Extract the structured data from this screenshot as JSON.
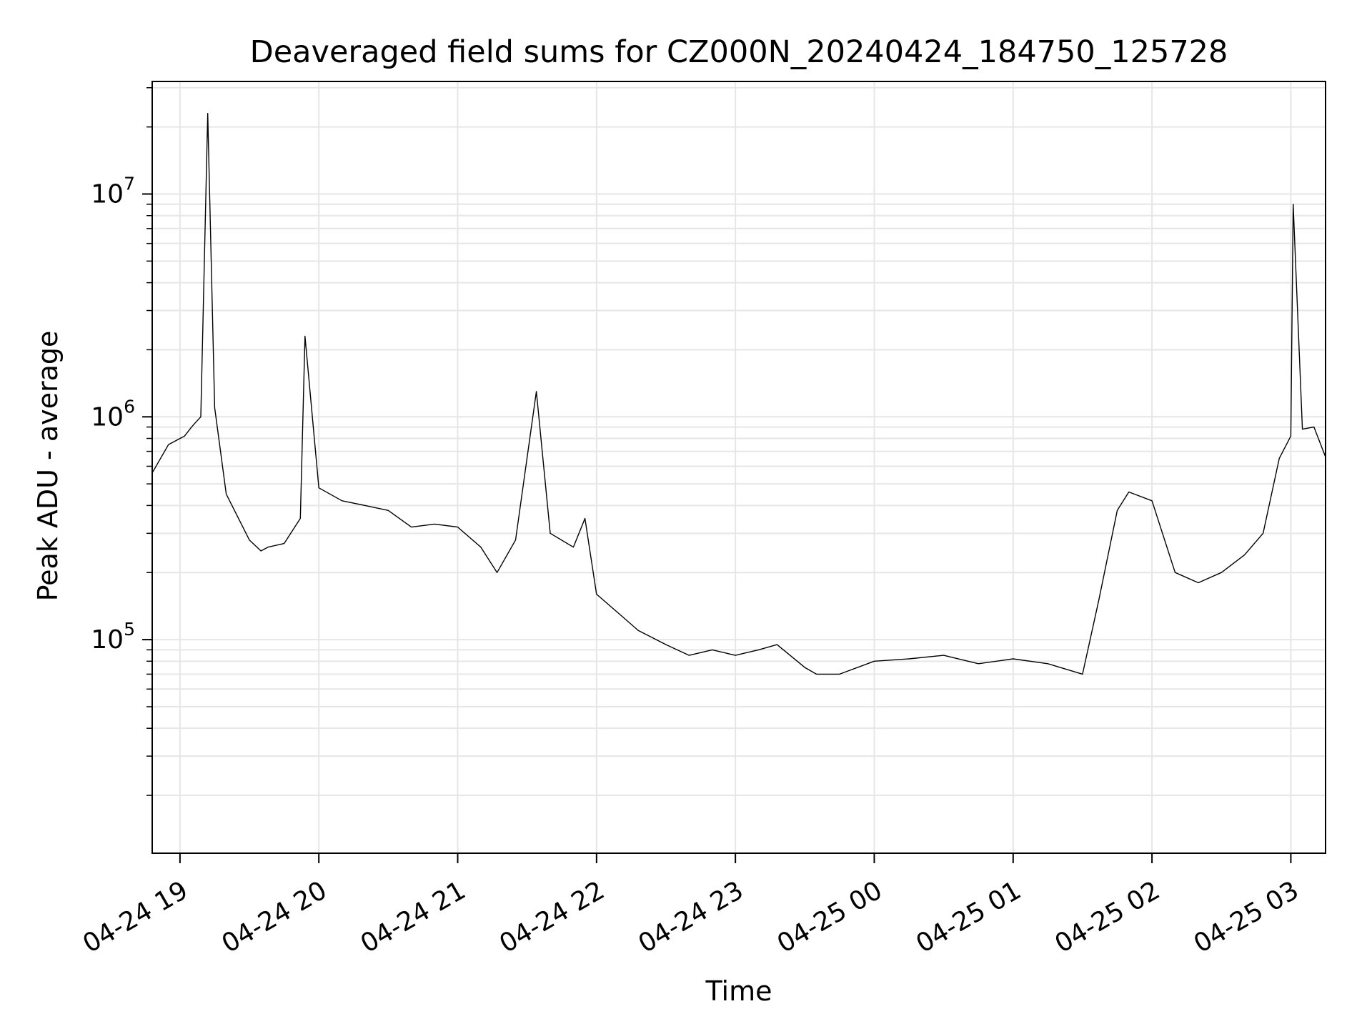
{
  "chart_data": {
    "type": "line",
    "title": "Deaveraged field sums for CZ000N_20240424_184750_125728",
    "xlabel": "Time",
    "ylabel": "Peak ADU - average",
    "yscale": "log",
    "xlim": [
      "2024-04-24 18:48",
      "2024-04-25 03:15"
    ],
    "ylim": [
      11000,
      32000000
    ],
    "grid": true,
    "line_color": "#000000",
    "x_ticks": [
      {
        "t": "2024-04-24 19:00",
        "label": "04-24 19"
      },
      {
        "t": "2024-04-24 20:00",
        "label": "04-24 20"
      },
      {
        "t": "2024-04-24 21:00",
        "label": "04-24 21"
      },
      {
        "t": "2024-04-24 22:00",
        "label": "04-24 22"
      },
      {
        "t": "2024-04-24 23:00",
        "label": "04-24 23"
      },
      {
        "t": "2024-04-25 00:00",
        "label": "04-25 00"
      },
      {
        "t": "2024-04-25 01:00",
        "label": "04-25 01"
      },
      {
        "t": "2024-04-25 02:00",
        "label": "04-25 02"
      },
      {
        "t": "2024-04-25 03:00",
        "label": "04-25 03"
      }
    ],
    "y_ticks": [
      {
        "v": 100000,
        "base": "10",
        "exp": "5"
      },
      {
        "v": 1000000,
        "base": "10",
        "exp": "6"
      },
      {
        "v": 10000000,
        "base": "10",
        "exp": "7"
      }
    ],
    "series": [
      {
        "x": [
          "2024-04-24 18:48",
          "2024-04-24 18:55",
          "2024-04-24 19:02",
          "2024-04-24 19:05",
          "2024-04-24 19:07",
          "2024-04-24 19:09",
          "2024-04-24 19:12",
          "2024-04-24 19:15",
          "2024-04-24 19:20",
          "2024-04-24 19:30",
          "2024-04-24 19:35",
          "2024-04-24 19:38",
          "2024-04-24 19:45",
          "2024-04-24 19:52",
          "2024-04-24 19:54",
          "2024-04-24 20:00",
          "2024-04-24 20:10",
          "2024-04-24 20:20",
          "2024-04-24 20:30",
          "2024-04-24 20:40",
          "2024-04-24 20:50",
          "2024-04-24 21:00",
          "2024-04-24 21:10",
          "2024-04-24 21:17",
          "2024-04-24 21:25",
          "2024-04-24 21:34",
          "2024-04-24 21:40",
          "2024-04-24 21:50",
          "2024-04-24 21:55",
          "2024-04-24 22:00",
          "2024-04-24 22:10",
          "2024-04-24 22:18",
          "2024-04-24 22:30",
          "2024-04-24 22:40",
          "2024-04-24 22:50",
          "2024-04-24 23:00",
          "2024-04-24 23:10",
          "2024-04-24 23:18",
          "2024-04-24 23:30",
          "2024-04-24 23:35",
          "2024-04-24 23:45",
          "2024-04-25 00:00",
          "2024-04-25 00:15",
          "2024-04-25 00:30",
          "2024-04-25 00:45",
          "2024-04-25 01:00",
          "2024-04-25 01:15",
          "2024-04-25 01:30",
          "2024-04-25 01:37",
          "2024-04-25 01:45",
          "2024-04-25 01:50",
          "2024-04-25 02:00",
          "2024-04-25 02:10",
          "2024-04-25 02:20",
          "2024-04-25 02:30",
          "2024-04-25 02:40",
          "2024-04-25 02:48",
          "2024-04-25 02:55",
          "2024-04-25 03:00",
          "2024-04-25 03:01",
          "2024-04-25 03:05",
          "2024-04-25 03:10",
          "2024-04-25 03:15"
        ],
        "y": [
          560000,
          750000,
          820000,
          900000,
          950000,
          1000000,
          23000000,
          1100000,
          450000,
          280000,
          250000,
          260000,
          270000,
          350000,
          2300000,
          480000,
          420000,
          400000,
          380000,
          320000,
          330000,
          320000,
          260000,
          200000,
          280000,
          1300000,
          300000,
          260000,
          350000,
          160000,
          130000,
          110000,
          95000,
          85000,
          90000,
          85000,
          90000,
          95000,
          75000,
          70000,
          70000,
          80000,
          82000,
          85000,
          78000,
          82000,
          78000,
          70000,
          150000,
          380000,
          460000,
          420000,
          200000,
          180000,
          200000,
          240000,
          300000,
          650000,
          820000,
          9000000,
          880000,
          900000,
          660000
        ]
      }
    ]
  }
}
